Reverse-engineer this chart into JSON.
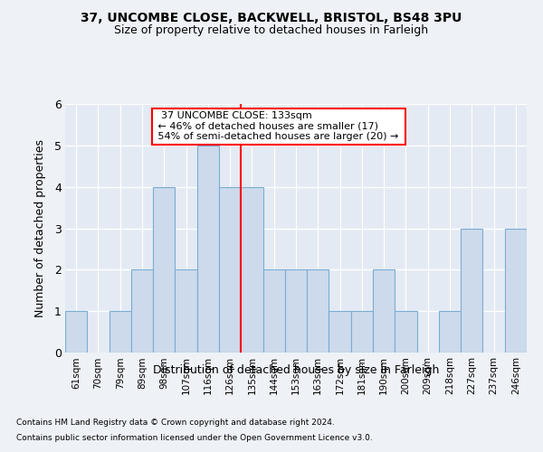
{
  "title1": "37, UNCOMBE CLOSE, BACKWELL, BRISTOL, BS48 3PU",
  "title2": "Size of property relative to detached houses in Farleigh",
  "xlabel": "Distribution of detached houses by size in Farleigh",
  "ylabel": "Number of detached properties",
  "categories": [
    "61sqm",
    "70sqm",
    "79sqm",
    "89sqm",
    "98sqm",
    "107sqm",
    "116sqm",
    "126sqm",
    "135sqm",
    "144sqm",
    "153sqm",
    "163sqm",
    "172sqm",
    "181sqm",
    "190sqm",
    "200sqm",
    "209sqm",
    "218sqm",
    "227sqm",
    "237sqm",
    "246sqm"
  ],
  "values": [
    1,
    0,
    1,
    2,
    4,
    2,
    5,
    4,
    4,
    2,
    2,
    2,
    1,
    1,
    2,
    1,
    0,
    1,
    3,
    0,
    3
  ],
  "bar_color": "#ccdaeb",
  "bar_edge_color": "#7aadd4",
  "reference_line_index": 8,
  "reference_label": "37 UNCOMBE CLOSE: 133sqm",
  "annotation_line1": "← 46% of detached houses are smaller (17)",
  "annotation_line2": "54% of semi-detached houses are larger (20) →",
  "footer1": "Contains HM Land Registry data © Crown copyright and database right 2024.",
  "footer2": "Contains public sector information licensed under the Open Government Licence v3.0.",
  "ylim": [
    0,
    6
  ],
  "bg_color": "#eef2f7",
  "plot_bg_color": "#e4eaf3"
}
